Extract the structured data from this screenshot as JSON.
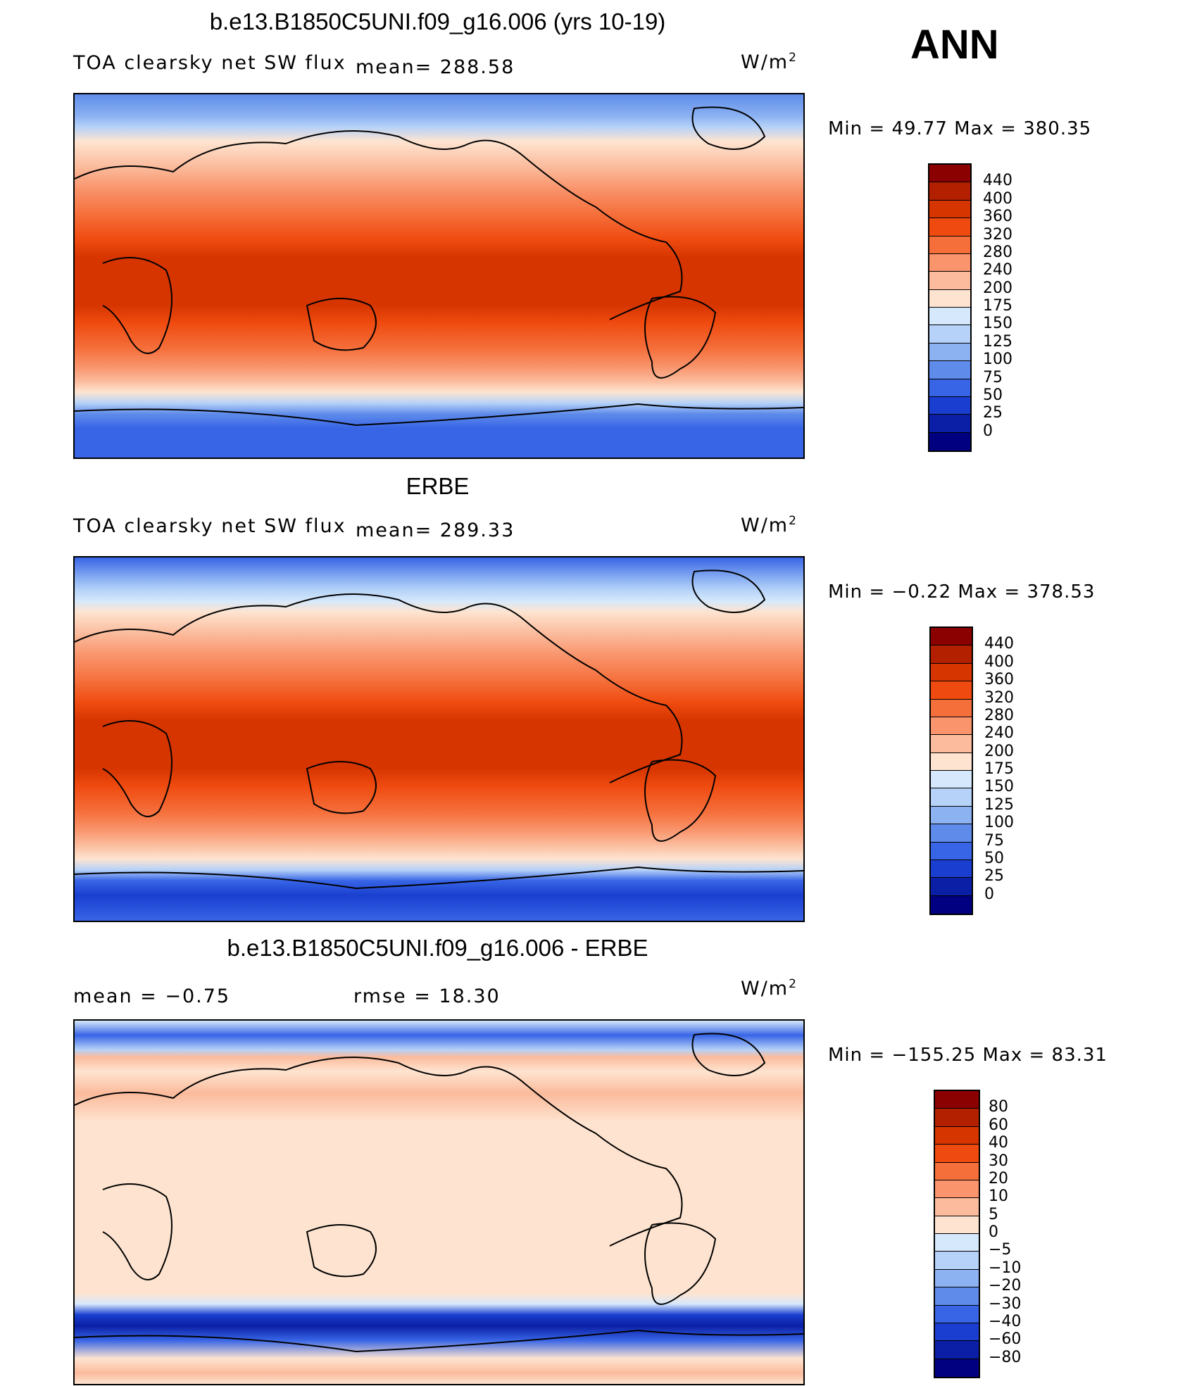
{
  "season": "ANN",
  "units_label": "W/m",
  "units_sup": "2",
  "panels": [
    {
      "title": "b.e13.B1850C5UNI.f09_g16.006 (yrs 10-19)",
      "variable": "TOA clearsky net SW flux",
      "mean_text": "mean=  288.58",
      "minmax_text": "Min =   49.77  Max  =  380.35",
      "colorbar_labels": [
        "440",
        "400",
        "360",
        "320",
        "280",
        "240",
        "200",
        "175",
        "150",
        "125",
        "100",
        "75",
        "50",
        "25",
        "0"
      ]
    },
    {
      "title": "ERBE",
      "variable": "TOA clearsky net SW flux",
      "mean_text": "mean=  289.33",
      "minmax_text": "Min =   −0.22  Max  =  378.53",
      "colorbar_labels": [
        "440",
        "400",
        "360",
        "320",
        "280",
        "240",
        "200",
        "175",
        "150",
        "125",
        "100",
        "75",
        "50",
        "25",
        "0"
      ]
    },
    {
      "title": "b.e13.B1850C5UNI.f09_g16.006 - ERBE",
      "mean_text": "mean =    −0.75",
      "rmse_text": "rmse =    18.30",
      "minmax_text": "Min = −155.25  Max =   83.31",
      "colorbar_labels": [
        "80",
        "60",
        "40",
        "30",
        "20",
        "10",
        "5",
        "0",
        "−5",
        "−10",
        "−20",
        "−30",
        "−40",
        "−60",
        "−80"
      ]
    }
  ],
  "colors": {
    "abs_scale": [
      "#8b0000",
      "#b22000",
      "#d63500",
      "#ef4b10",
      "#f56f3b",
      "#f9946c",
      "#fbbb9c",
      "#fee4d0",
      "#d6e8fb",
      "#b6d2f8",
      "#8cb2f2",
      "#5f8cea",
      "#3865e6",
      "#1a3fd0",
      "#0a1fa5",
      "#000080"
    ],
    "diff_scale": [
      "#8b0000",
      "#b22000",
      "#d63500",
      "#ef4b10",
      "#f56f3b",
      "#f9946c",
      "#fbbb9c",
      "#fee4d0",
      "#d6e8fb",
      "#b6d2f8",
      "#8cb2f2",
      "#5f8cea",
      "#3865e6",
      "#1a3fd0",
      "#0a1fa5",
      "#000080"
    ]
  }
}
